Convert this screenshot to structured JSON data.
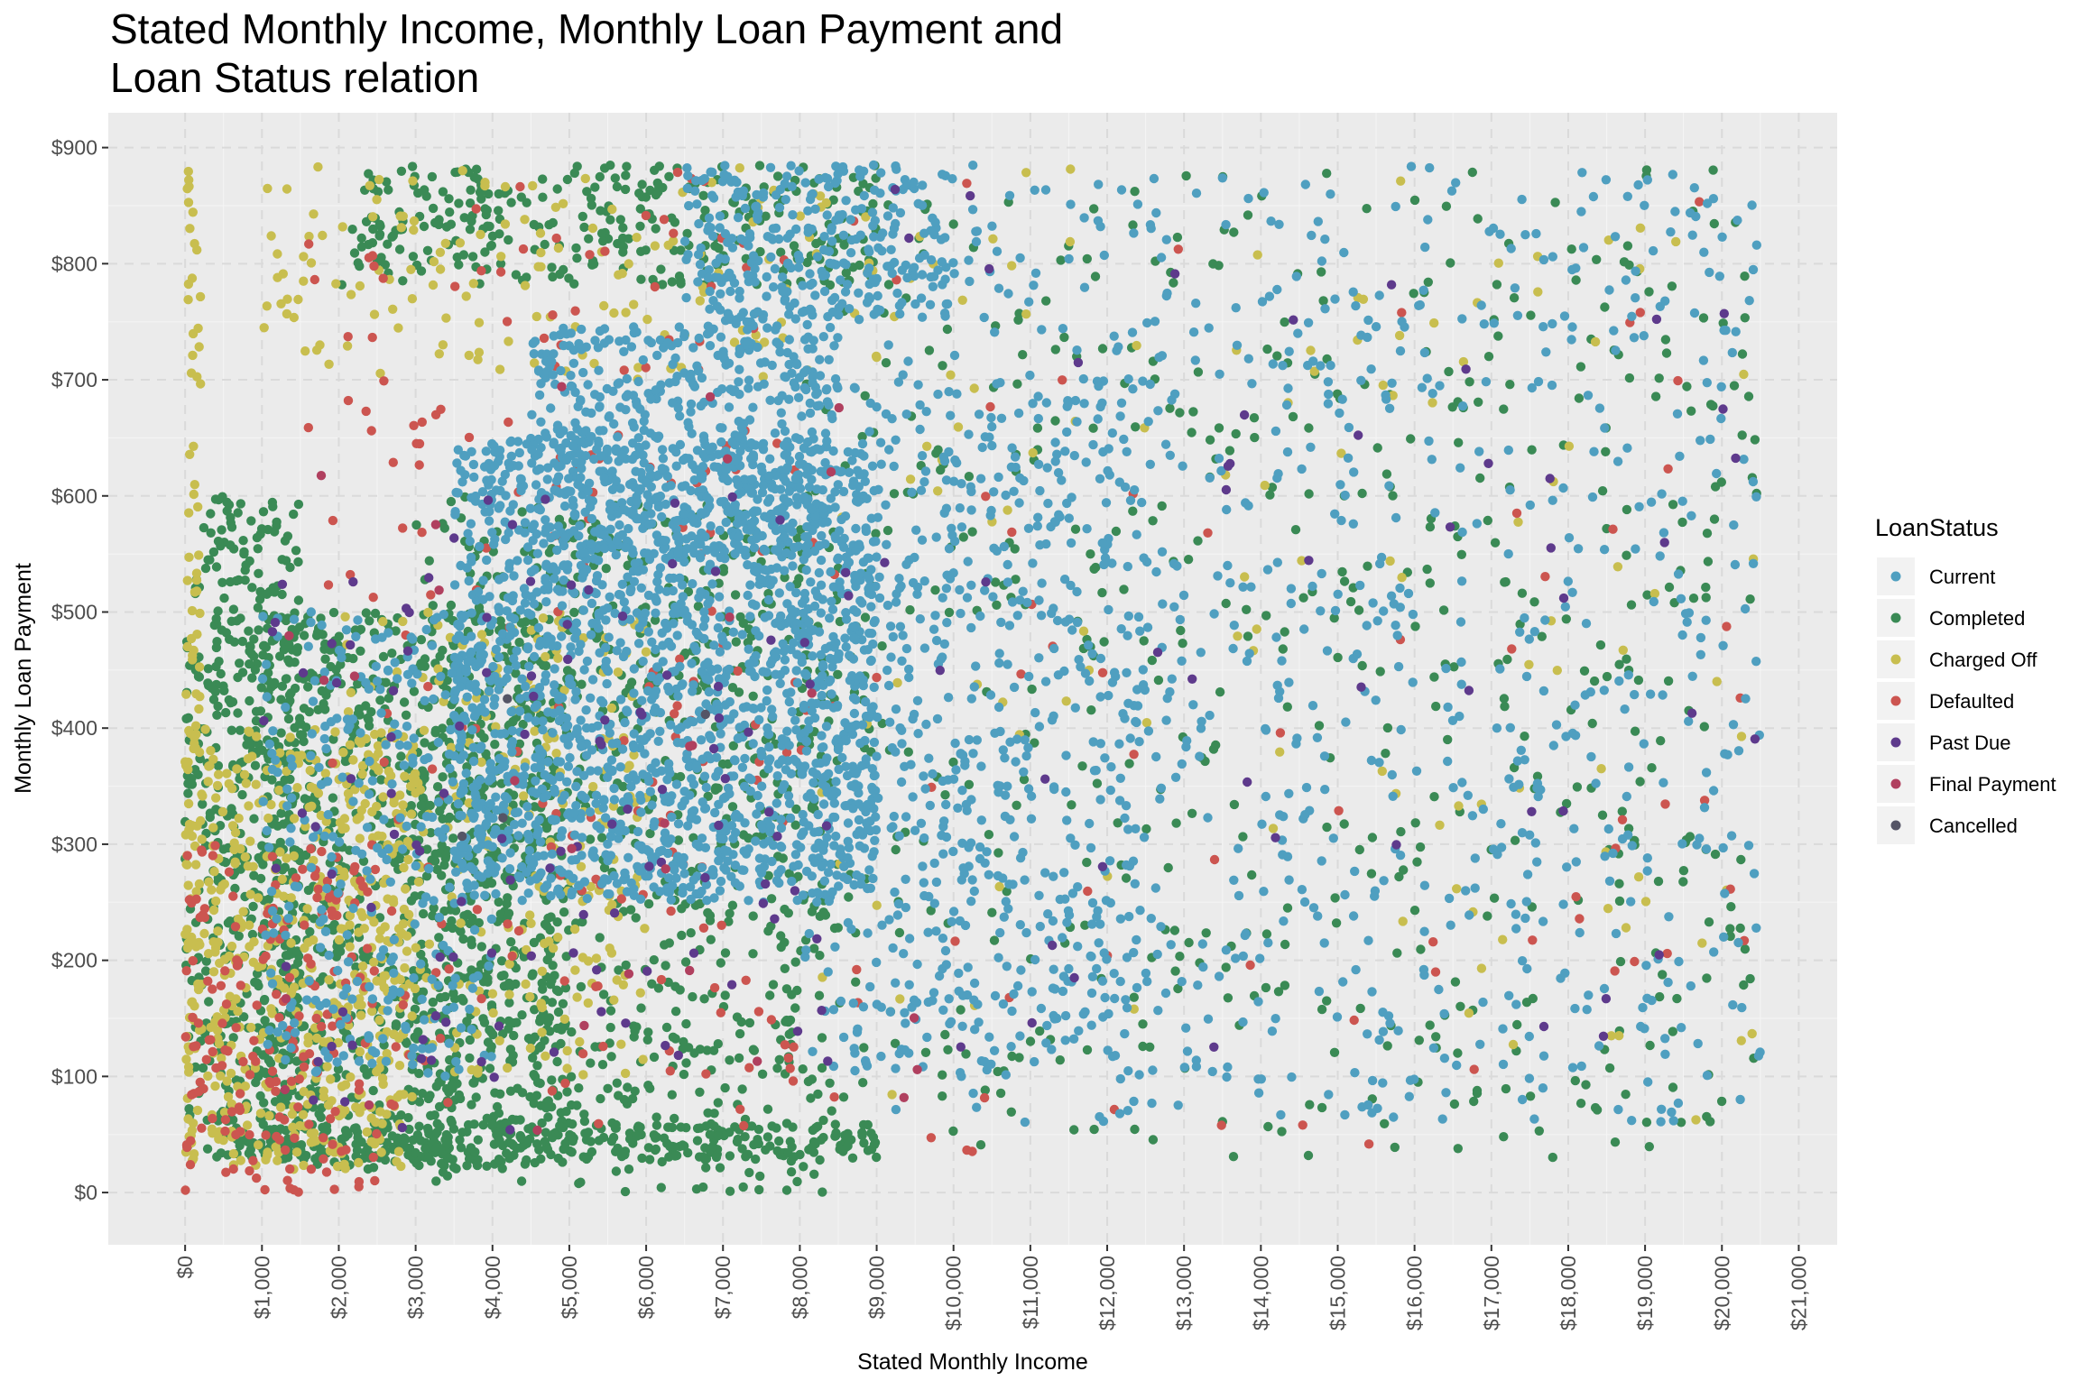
{
  "chart_data": {
    "type": "scatter",
    "title": "Stated Monthly Income, Monthly Loan Payment and Loan Status relation",
    "title_lines": [
      "Stated Monthly Income, Monthly Loan Payment and",
      "Loan Status relation"
    ],
    "xlabel": "Stated Monthly Income",
    "ylabel": "Monthly Loan Payment",
    "xlim": [
      -1000,
      21500
    ],
    "ylim": [
      -45,
      930
    ],
    "x_ticks": [
      0,
      1000,
      2000,
      3000,
      4000,
      5000,
      6000,
      7000,
      8000,
      9000,
      10000,
      11000,
      12000,
      13000,
      14000,
      15000,
      16000,
      17000,
      18000,
      19000,
      20000,
      21000
    ],
    "x_tick_labels": [
      "$0",
      "$1,000",
      "$2,000",
      "$3,000",
      "$4,000",
      "$5,000",
      "$6,000",
      "$7,000",
      "$8,000",
      "$9,000",
      "$10,000",
      "$11,000",
      "$12,000",
      "$13,000",
      "$14,000",
      "$15,000",
      "$16,000",
      "$17,000",
      "$18,000",
      "$19,000",
      "$20,000",
      "$21,000"
    ],
    "y_ticks": [
      0,
      100,
      200,
      300,
      400,
      500,
      600,
      700,
      800,
      900
    ],
    "y_tick_labels": [
      "$0",
      "$100",
      "$200",
      "$300",
      "$400",
      "$500",
      "$600",
      "$700",
      "$800",
      "$900"
    ],
    "grid": true,
    "background": "#EBEBEB",
    "legend": {
      "title": "LoanStatus",
      "position": "right",
      "entries": [
        {
          "label": "Current",
          "color": "#4F9FC0"
        },
        {
          "label": "Completed",
          "color": "#3A8A55"
        },
        {
          "label": "Charged Off",
          "color": "#C8BE4F"
        },
        {
          "label": "Defaulted",
          "color": "#CC5550"
        },
        {
          "label": "Past Due",
          "color": "#5E3A8C"
        },
        {
          "label": "Final Payment",
          "color": "#B0405F"
        },
        {
          "label": "Cancelled",
          "color": "#555566"
        }
      ]
    },
    "series": [
      {
        "name": "Completed",
        "color": "#3A8A55",
        "clusters": [
          {
            "x": [
              0,
              1500
            ],
            "y": [
              30,
              600
            ],
            "n": 500
          },
          {
            "x": [
              1000,
              5000
            ],
            "y": [
              20,
              500
            ],
            "n": 900
          },
          {
            "x": [
              3000,
              8500
            ],
            "y": [
              0,
              600
            ],
            "n": 800
          },
          {
            "x": [
              2000,
              9000
            ],
            "y": [
              780,
              885
            ],
            "n": 300
          },
          {
            "x": [
              8000,
              20500
            ],
            "y": [
              30,
              885
            ],
            "n": 600
          },
          {
            "x": [
              1000,
              9000
            ],
            "y": [
              28,
              60
            ],
            "n": 300
          }
        ]
      },
      {
        "name": "Charged Off",
        "color": "#C8BE4F",
        "clusters": [
          {
            "x": [
              0,
              3000
            ],
            "y": [
              20,
              400
            ],
            "n": 500
          },
          {
            "x": [
              0,
              200
            ],
            "y": [
              0,
              885
            ],
            "n": 80
          },
          {
            "x": [
              2000,
              6000
            ],
            "y": [
              100,
              500
            ],
            "n": 250
          },
          {
            "x": [
              1000,
              9000
            ],
            "y": [
              700,
              885
            ],
            "n": 150
          },
          {
            "x": [
              8000,
              20500
            ],
            "y": [
              60,
              885
            ],
            "n": 120
          }
        ]
      },
      {
        "name": "Defaulted",
        "color": "#CC5550",
        "clusters": [
          {
            "x": [
              0,
              2500
            ],
            "y": [
              0,
              300
            ],
            "n": 180
          },
          {
            "x": [
              1500,
              8000
            ],
            "y": [
              50,
              880
            ],
            "n": 200
          },
          {
            "x": [
              8000,
              20500
            ],
            "y": [
              30,
              880
            ],
            "n": 70
          }
        ]
      },
      {
        "name": "Current",
        "color": "#4F9FC0",
        "clusters": [
          {
            "x": [
              3500,
              9000
            ],
            "y": [
              250,
              650
            ],
            "n": 1800
          },
          {
            "x": [
              4500,
              8500
            ],
            "y": [
              550,
              750
            ],
            "n": 500
          },
          {
            "x": [
              6500,
              10000
            ],
            "y": [
              750,
              885
            ],
            "n": 300
          },
          {
            "x": [
              9000,
              20500
            ],
            "y": [
              60,
              885
            ],
            "n": 900
          },
          {
            "x": [
              8000,
              12500
            ],
            "y": [
              100,
              700
            ],
            "n": 500
          },
          {
            "x": [
              1000,
              4000
            ],
            "y": [
              100,
              500
            ],
            "n": 300
          }
        ]
      },
      {
        "name": "Past Due",
        "color": "#5E3A8C",
        "clusters": [
          {
            "x": [
              1000,
              9000
            ],
            "y": [
              50,
              600
            ],
            "n": 120
          },
          {
            "x": [
              9000,
              20500
            ],
            "y": [
              100,
              880
            ],
            "n": 50
          }
        ]
      },
      {
        "name": "Final Payment",
        "color": "#B0405F",
        "clusters": [
          {
            "x": [
              1000,
              10000
            ],
            "y": [
              50,
              700
            ],
            "n": 30
          }
        ]
      },
      {
        "name": "Cancelled",
        "color": "#555566",
        "clusters": [
          {
            "x": [
              2000,
              8000
            ],
            "y": [
              100,
              500
            ],
            "n": 4
          }
        ]
      }
    ]
  }
}
